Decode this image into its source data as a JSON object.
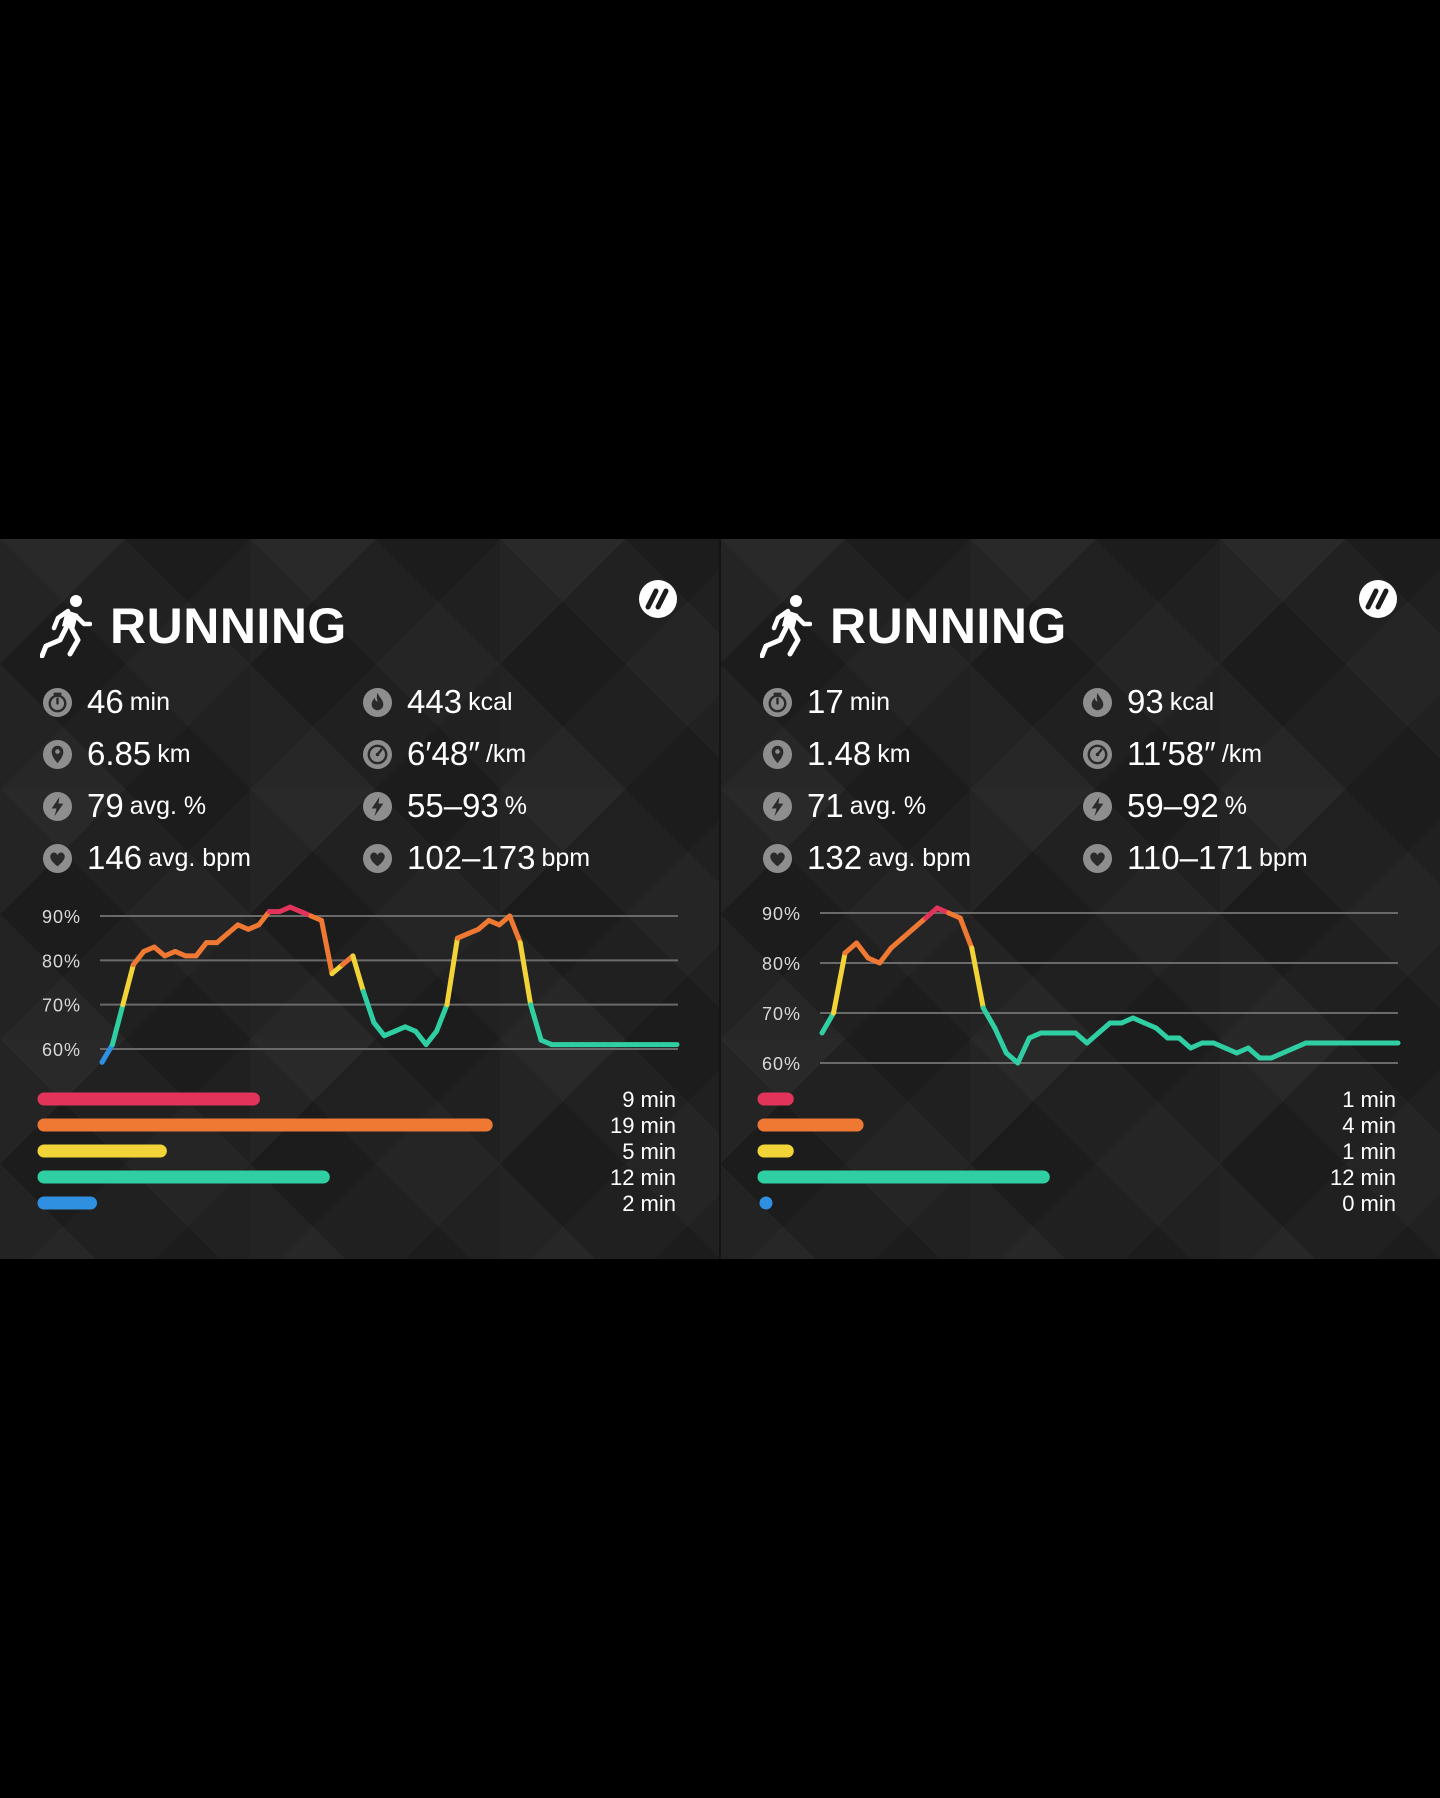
{
  "cards": [
    {
      "title": "RUNNING",
      "stats": {
        "duration": {
          "value": "46",
          "unit": "min",
          "icon": "stopwatch-icon"
        },
        "distance": {
          "value": "6.85",
          "unit": "km",
          "icon": "location-pin-icon"
        },
        "avg_intensity": {
          "value": "79",
          "unit": "avg. %",
          "icon": "bolt-icon"
        },
        "avg_hr": {
          "value": "146",
          "unit": "avg. bpm",
          "icon": "heart-icon"
        },
        "calories": {
          "value": "443",
          "unit": "kcal",
          "icon": "flame-icon"
        },
        "pace": {
          "value": "6′48″",
          "unit": "/km",
          "icon": "speedometer-icon"
        },
        "intensity_range": {
          "value": "55–93",
          "unit": "%",
          "icon": "bolt-icon"
        },
        "hr_range": {
          "value": "102–173",
          "unit": "bpm",
          "icon": "heart-icon"
        }
      },
      "chart_data": {
        "type": "line",
        "title": "",
        "xlabel": "",
        "ylabel": "",
        "ylim": [
          60,
          90
        ],
        "yticks": [
          "90%",
          "80%",
          "70%",
          "60%"
        ],
        "x": [
          0,
          1,
          2,
          3,
          4,
          5,
          6,
          7,
          8,
          9,
          10,
          11,
          12,
          13,
          14,
          15,
          16,
          17,
          18,
          19,
          20,
          21,
          22,
          23,
          24,
          25,
          26,
          27,
          28,
          29,
          30,
          31,
          32,
          33,
          34,
          35,
          36,
          37,
          38,
          39,
          40,
          41,
          42,
          43,
          44,
          45,
          46,
          47,
          48,
          49,
          50,
          51,
          52,
          53,
          54,
          55
        ],
        "values": [
          57,
          61,
          70,
          79,
          82,
          83,
          81,
          82,
          81,
          81,
          84,
          84,
          86,
          88,
          87,
          88,
          91,
          91,
          92,
          91,
          90,
          89,
          77,
          79,
          81,
          73,
          66,
          63,
          64,
          65,
          64,
          61,
          64,
          70,
          85,
          86,
          87,
          89,
          88,
          90,
          84,
          70,
          62,
          61,
          61,
          61,
          61,
          61,
          61,
          61,
          61,
          61,
          61,
          61,
          61,
          61
        ]
      },
      "zones": [
        {
          "label": "9 min",
          "minutes": 9,
          "color": "#e2345b"
        },
        {
          "label": "19 min",
          "minutes": 19,
          "color": "#ef7833"
        },
        {
          "label": "5 min",
          "minutes": 5,
          "color": "#f2d338"
        },
        {
          "label": "12 min",
          "minutes": 12,
          "color": "#2fcfa3"
        },
        {
          "label": "2 min",
          "minutes": 2,
          "color": "#2f8fe0"
        }
      ]
    },
    {
      "title": "RUNNING",
      "stats": {
        "duration": {
          "value": "17",
          "unit": "min",
          "icon": "stopwatch-icon"
        },
        "distance": {
          "value": "1.48",
          "unit": "km",
          "icon": "location-pin-icon"
        },
        "avg_intensity": {
          "value": "71",
          "unit": "avg. %",
          "icon": "bolt-icon"
        },
        "avg_hr": {
          "value": "132",
          "unit": "avg. bpm",
          "icon": "heart-icon"
        },
        "calories": {
          "value": "93",
          "unit": "kcal",
          "icon": "flame-icon"
        },
        "pace": {
          "value": "11′58″",
          "unit": "/km",
          "icon": "speedometer-icon"
        },
        "intensity_range": {
          "value": "59–92",
          "unit": "%",
          "icon": "bolt-icon"
        },
        "hr_range": {
          "value": "110–171",
          "unit": "bpm",
          "icon": "heart-icon"
        }
      },
      "chart_data": {
        "type": "line",
        "title": "",
        "xlabel": "",
        "ylabel": "",
        "ylim": [
          60,
          90
        ],
        "yticks": [
          "90%",
          "80%",
          "70%",
          "60%"
        ],
        "x": [
          0,
          1,
          2,
          3,
          4,
          5,
          6,
          7,
          8,
          9,
          10,
          11,
          12,
          13,
          14,
          15,
          16,
          17,
          18,
          19,
          20,
          21,
          22,
          23,
          24,
          25,
          26,
          27,
          28,
          29,
          30,
          31,
          32,
          33,
          34,
          35,
          36,
          37,
          38,
          39,
          40,
          41,
          42,
          43,
          44,
          45,
          46,
          47,
          48,
          49,
          50
        ],
        "values": [
          66,
          70,
          82,
          84,
          81,
          80,
          83,
          85,
          87,
          89,
          91,
          90,
          89,
          83,
          71,
          67,
          62,
          60,
          65,
          66,
          66,
          66,
          66,
          64,
          66,
          68,
          68,
          69,
          68,
          67,
          65,
          65,
          63,
          64,
          64,
          63,
          62,
          63,
          61,
          61,
          62,
          63,
          64,
          64,
          64,
          64,
          64,
          64,
          64,
          64,
          64
        ]
      },
      "zones": [
        {
          "label": "1 min",
          "minutes": 1,
          "color": "#e2345b"
        },
        {
          "label": "4 min",
          "minutes": 4,
          "color": "#ef7833"
        },
        {
          "label": "1 min",
          "minutes": 1,
          "color": "#f2d338"
        },
        {
          "label": "12 min",
          "minutes": 12,
          "color": "#2fcfa3"
        },
        {
          "label": "0 min",
          "minutes": 0,
          "color": "#2f8fe0"
        }
      ]
    }
  ],
  "zone_colors": {
    "max": "#e2345b",
    "hard": "#ef7833",
    "moderate": "#f2d338",
    "light": "#2fcfa3",
    "very_light": "#2f8fe0"
  }
}
